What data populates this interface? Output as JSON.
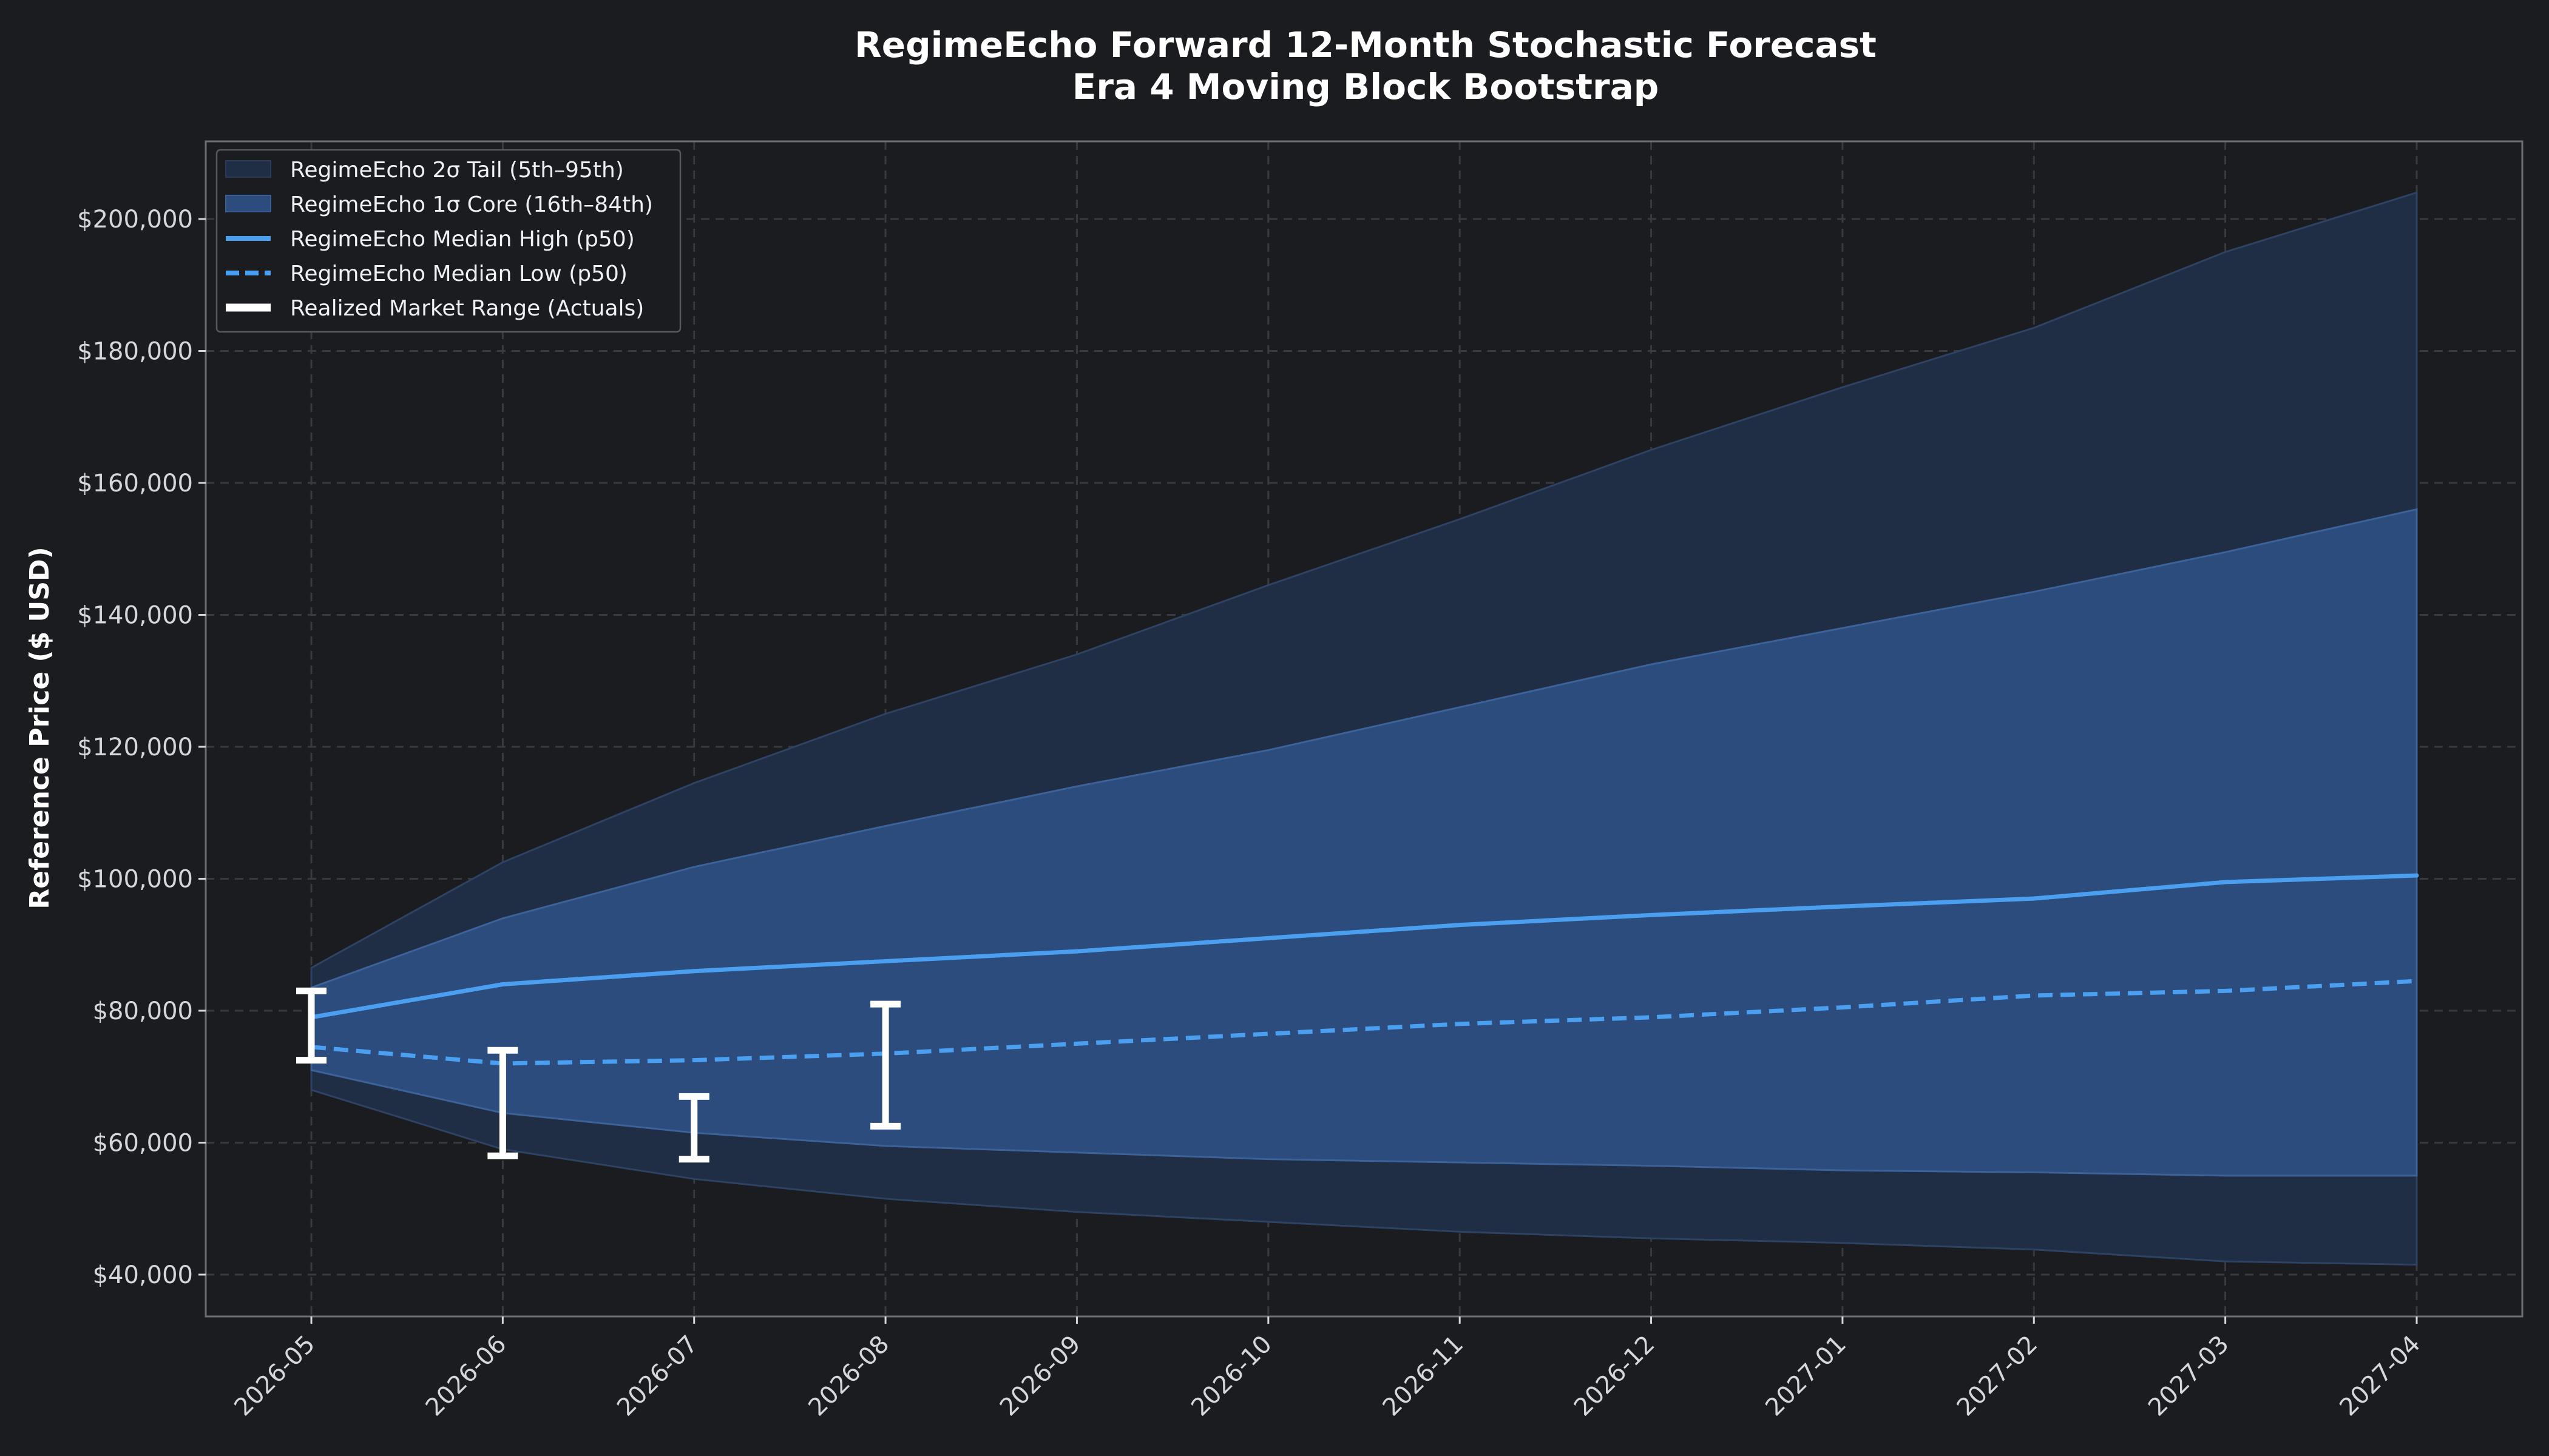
{
  "chart_data": {
    "type": "area",
    "title": [
      "RegimeEcho Forward 12-Month Stochastic Forecast",
      "Era 4 Moving Block Bootstrap"
    ],
    "xlabel": "",
    "ylabel": "Reference Price ($ USD)",
    "ylim": [
      34000,
      212000
    ],
    "yticks": [
      40000,
      60000,
      80000,
      100000,
      120000,
      140000,
      160000,
      180000,
      200000
    ],
    "ytick_labels": [
      "$40,000",
      "$60,000",
      "$80,000",
      "$100,000",
      "$120,000",
      "$140,000",
      "$160,000",
      "$180,000",
      "$200,000"
    ],
    "x": [
      "2026-05",
      "2026-06",
      "2026-07",
      "2026-08",
      "2026-09",
      "2026-10",
      "2026-11",
      "2026-12",
      "2027-01",
      "2027-02",
      "2027-03",
      "2027-04"
    ],
    "grid": true,
    "legend_position": "top-left",
    "bands": [
      {
        "name": "RegimeEcho 2σ Tail (5th–95th)",
        "color": "#1f2d45",
        "lower": [
          68000,
          59000,
          54500,
          51500,
          49500,
          48000,
          46500,
          45500,
          44800,
          43800,
          42000,
          41500
        ],
        "upper": [
          86500,
          102500,
          114500,
          125000,
          134000,
          144500,
          154500,
          165000,
          174500,
          183500,
          195000,
          204000
        ]
      },
      {
        "name": "RegimeEcho 1σ Core (16th–84th)",
        "color": "#2b4c7d",
        "lower": [
          71000,
          64500,
          61500,
          59500,
          58500,
          57500,
          57000,
          56500,
          55800,
          55500,
          55000,
          55000
        ],
        "upper": [
          83500,
          94000,
          101800,
          108000,
          114000,
          119500,
          126000,
          132500,
          138000,
          143500,
          149500,
          156000
        ]
      }
    ],
    "series": [
      {
        "name": "RegimeEcho Median High (p50)",
        "style": "solid",
        "color": "#4b9ff0",
        "values": [
          79000,
          84000,
          86000,
          87500,
          89000,
          91000,
          93000,
          94500,
          95800,
          97000,
          99500,
          100500
        ]
      },
      {
        "name": "RegimeEcho Median Low (p50)",
        "style": "dashed",
        "color": "#4b9ff0",
        "values": [
          74500,
          72000,
          72500,
          73500,
          75000,
          76500,
          78000,
          79000,
          80500,
          82300,
          83000,
          84500
        ]
      }
    ],
    "actuals": {
      "name": "Realized Market Range (Actuals)",
      "color": "#ffffff",
      "ranges": [
        {
          "x": "2026-05",
          "low": 72500,
          "high": 83000
        },
        {
          "x": "2026-06",
          "low": 58000,
          "high": 74000
        },
        {
          "x": "2026-07",
          "low": 57500,
          "high": 67000
        },
        {
          "x": "2026-08",
          "low": 62500,
          "high": 81000
        }
      ]
    }
  }
}
